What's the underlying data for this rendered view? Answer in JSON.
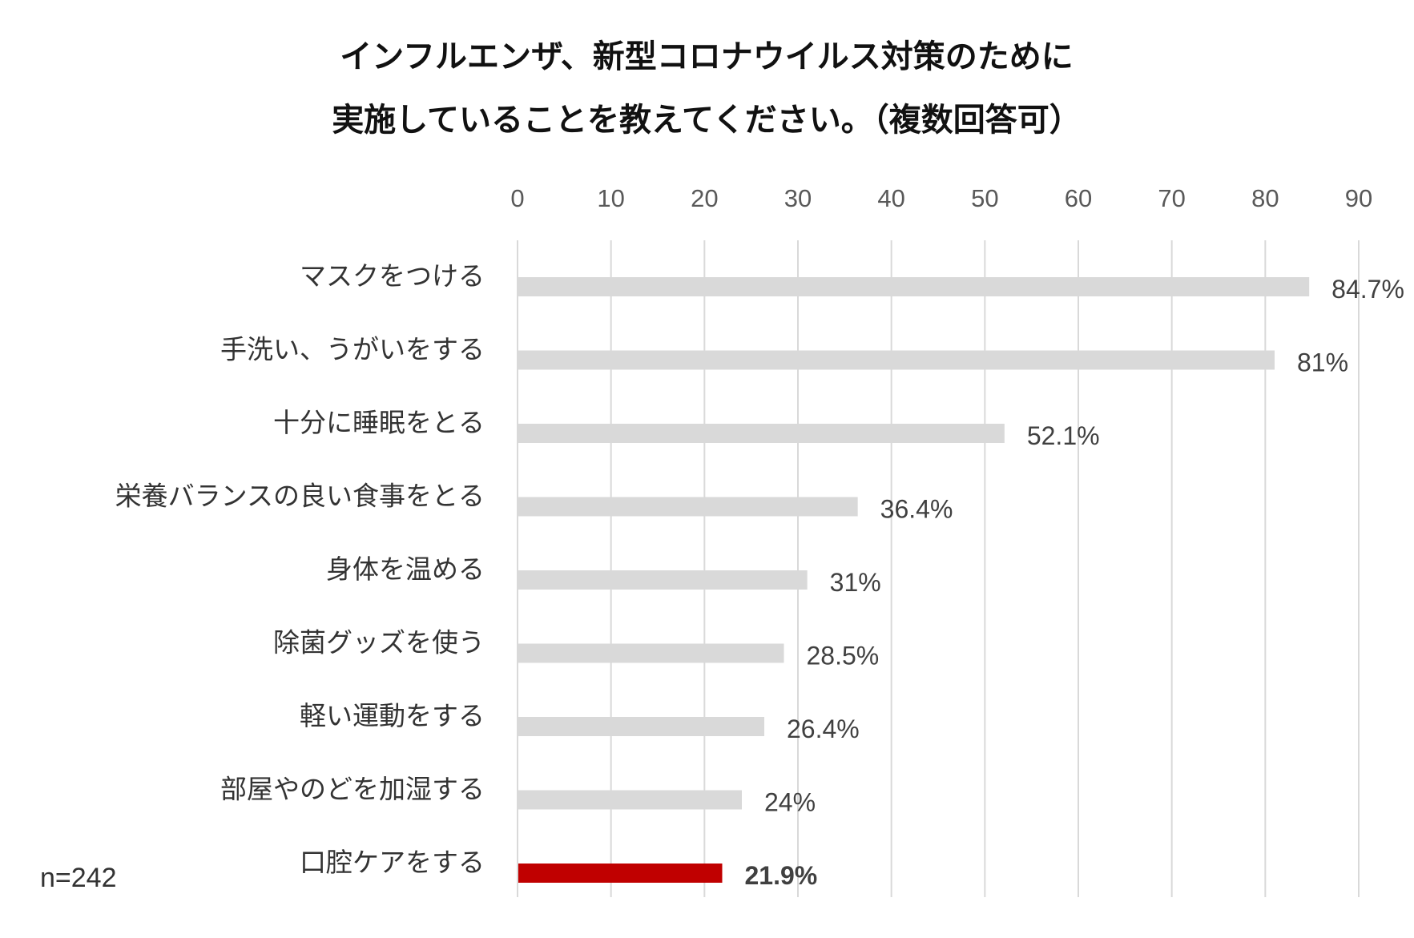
{
  "chart_data": {
    "type": "bar",
    "orientation": "horizontal",
    "title_lines": [
      "インフルエンザ、新型コロナウイルス対策のために",
      "実施していることを教えてください。（複数回答可）"
    ],
    "categories": [
      "マスクをつける",
      "手洗い、うがいをする",
      "十分に睡眠をとる",
      "栄養バランスの良い食事をとる",
      "身体を温める",
      "除菌グッズを使う",
      "軽い運動をする",
      "部屋やのどを加湿する",
      "口腔ケアをする"
    ],
    "values": [
      84.7,
      81,
      52.1,
      36.4,
      31,
      28.5,
      26.4,
      24,
      21.9
    ],
    "data_labels": [
      "84.7%",
      "81%",
      "52.1%",
      "36.4%",
      "31%",
      "28.5%",
      "26.4%",
      "24%",
      "21.9%"
    ],
    "highlight_index": 8,
    "xlim": [
      0,
      90
    ],
    "x_ticks": [
      "0",
      "10",
      "20",
      "30",
      "40",
      "50",
      "60",
      "70",
      "80",
      "90"
    ],
    "x_axis_position": "top",
    "grid": true,
    "note": "n=242",
    "colors": {
      "bar": "#d9d9d9",
      "highlight": "#c00000",
      "grid": "#d9d9d9",
      "label": "#404040"
    }
  }
}
